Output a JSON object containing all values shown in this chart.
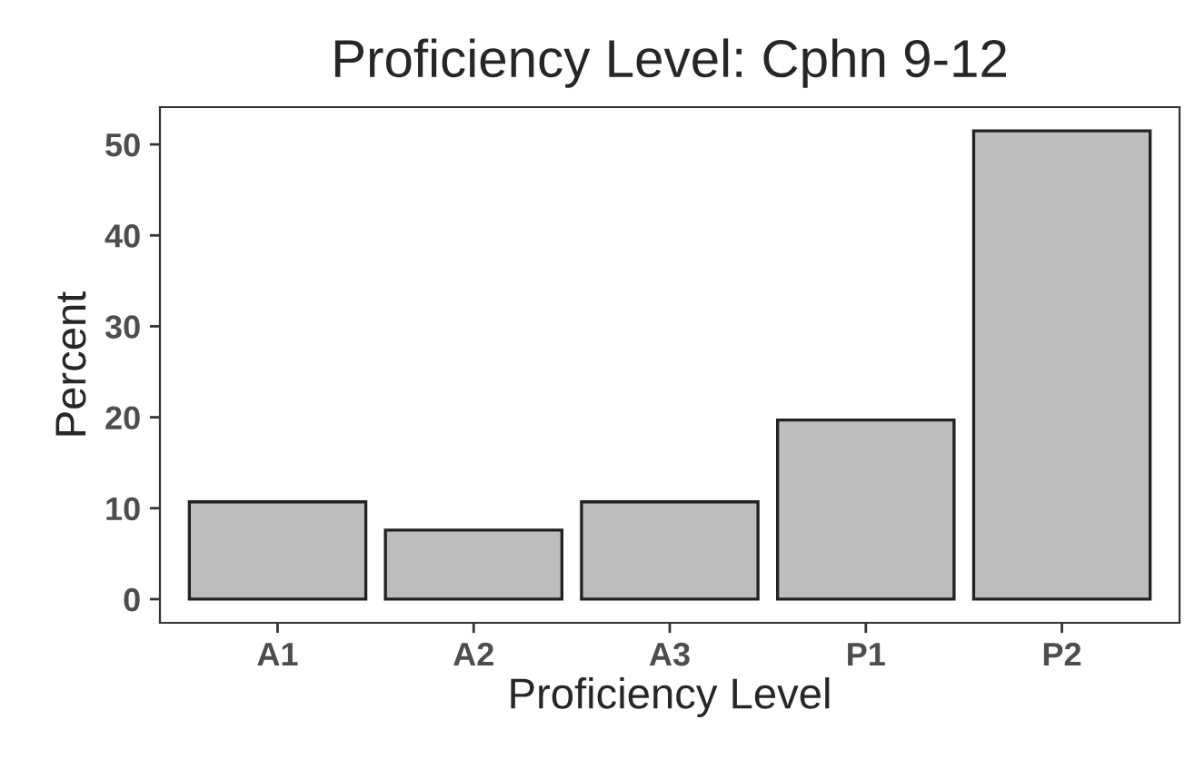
{
  "chart_data": {
    "type": "bar",
    "title": "Proficiency Level: Cphn 9-12",
    "xlabel": "Proficiency Level",
    "ylabel": "Percent",
    "categories": [
      "A1",
      "A2",
      "A3",
      "P1",
      "P2"
    ],
    "values": [
      10.7,
      7.6,
      10.7,
      19.7,
      51.5
    ],
    "color": "#bebebe",
    "ylim": [
      -2.6,
      54.1
    ],
    "yticks": [
      0,
      10,
      20,
      30,
      40,
      50
    ],
    "grid": false
  }
}
